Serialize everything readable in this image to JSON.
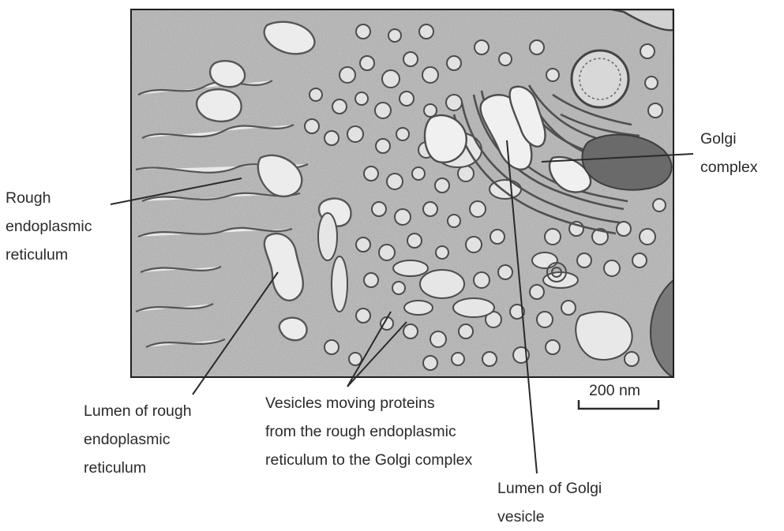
{
  "labels": {
    "golgi_complex": [
      "Golgi",
      "complex"
    ],
    "rough_er": [
      "Rough",
      "endoplasmic",
      "reticulum"
    ],
    "lumen_rough_er": [
      "Lumen of rough",
      "endoplasmic",
      "reticulum"
    ],
    "vesicles": [
      "Vesicles moving proteins",
      "from the rough endoplasmic",
      "reticulum to the Golgi complex"
    ],
    "lumen_golgi": [
      "Lumen of Golgi",
      "vesicle"
    ]
  },
  "scale_bar": {
    "label": "200 nm"
  },
  "micrograph": {
    "description_icon": "electron-micrograph",
    "colors": {
      "background": "#bdbdbd",
      "membrane": "#5a5a5a",
      "lumen": "#ececec",
      "frame": "#1e1e1e"
    }
  }
}
